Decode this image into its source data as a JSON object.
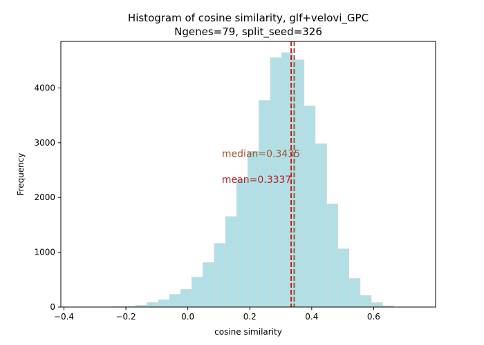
{
  "chart_data": {
    "type": "histogram",
    "title_line1": "Histogram of cosine similarity, glf+velovi_GPC",
    "title_line2": "Ngenes=79, split_seed=326",
    "xlabel": "cosine similarity",
    "ylabel": "Frequency",
    "xlim": [
      -0.41,
      0.8
    ],
    "ylim": [
      0,
      4850
    ],
    "xticks": [
      -0.4,
      -0.2,
      0.0,
      0.2,
      0.4,
      0.6
    ],
    "xtick_labels": [
      "−0.4",
      "−0.2",
      "0.0",
      "0.2",
      "0.4",
      "0.6"
    ],
    "yticks": [
      0,
      1000,
      2000,
      3000,
      4000
    ],
    "ytick_labels": [
      "0",
      "1000",
      "2000",
      "3000",
      "4000"
    ],
    "bins": [
      {
        "x0": -0.385,
        "x1": -0.349,
        "count": 0
      },
      {
        "x0": -0.349,
        "x1": -0.313,
        "count": 0
      },
      {
        "x0": -0.313,
        "x1": -0.276,
        "count": 0
      },
      {
        "x0": -0.276,
        "x1": -0.24,
        "count": 0
      },
      {
        "x0": -0.24,
        "x1": -0.204,
        "count": 5
      },
      {
        "x0": -0.204,
        "x1": -0.168,
        "count": 10
      },
      {
        "x0": -0.168,
        "x1": -0.132,
        "count": 30
      },
      {
        "x0": -0.132,
        "x1": -0.095,
        "count": 80
      },
      {
        "x0": -0.095,
        "x1": -0.059,
        "count": 130
      },
      {
        "x0": -0.059,
        "x1": -0.023,
        "count": 230
      },
      {
        "x0": -0.023,
        "x1": 0.013,
        "count": 320
      },
      {
        "x0": 0.013,
        "x1": 0.049,
        "count": 545
      },
      {
        "x0": 0.049,
        "x1": 0.086,
        "count": 810
      },
      {
        "x0": 0.086,
        "x1": 0.122,
        "count": 1160
      },
      {
        "x0": 0.122,
        "x1": 0.158,
        "count": 1650
      },
      {
        "x0": 0.158,
        "x1": 0.194,
        "count": 2330
      },
      {
        "x0": 0.194,
        "x1": 0.23,
        "count": 2840
      },
      {
        "x0": 0.23,
        "x1": 0.267,
        "count": 3770
      },
      {
        "x0": 0.267,
        "x1": 0.303,
        "count": 4550
      },
      {
        "x0": 0.303,
        "x1": 0.339,
        "count": 4640
      },
      {
        "x0": 0.339,
        "x1": 0.375,
        "count": 4510
      },
      {
        "x0": 0.375,
        "x1": 0.411,
        "count": 3670
      },
      {
        "x0": 0.411,
        "x1": 0.448,
        "count": 2980
      },
      {
        "x0": 0.448,
        "x1": 0.484,
        "count": 1880
      },
      {
        "x0": 0.484,
        "x1": 0.52,
        "count": 1060
      },
      {
        "x0": 0.52,
        "x1": 0.556,
        "count": 520
      },
      {
        "x0": 0.556,
        "x1": 0.592,
        "count": 210
      },
      {
        "x0": 0.592,
        "x1": 0.629,
        "count": 80
      },
      {
        "x0": 0.629,
        "x1": 0.665,
        "count": 20
      },
      {
        "x0": 0.665,
        "x1": 0.701,
        "count": 0
      }
    ],
    "bar_color": "#b0e0e6",
    "bar_edge_color": "#d3d3d3",
    "median": {
      "value": 0.3435,
      "label": "median=0.3435",
      "color": "#a0522d",
      "label_x": 0.11,
      "label_y": 2800
    },
    "mean": {
      "value": 0.3337,
      "label": "mean=0.3337",
      "color": "#b22222",
      "label_x": 0.11,
      "label_y": 2330
    },
    "grid": false
  }
}
